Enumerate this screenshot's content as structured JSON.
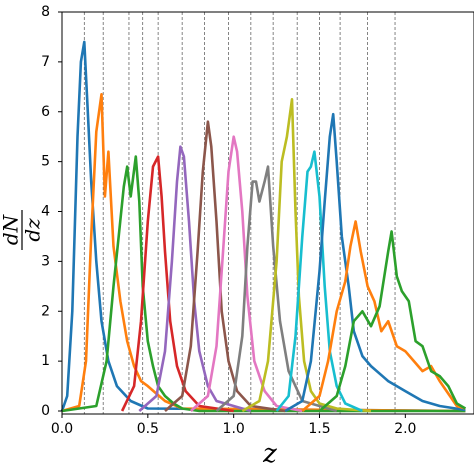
{
  "chart_data": {
    "type": "line",
    "xlabel": "z",
    "ylabel_numerator": "dN",
    "ylabel_denominator": "dz",
    "xlim": [
      0,
      2.4
    ],
    "ylim": [
      -0.06,
      8
    ],
    "xticks": [
      {
        "value": 0,
        "label": "0.0"
      },
      {
        "value": 0.5,
        "label": "0.5"
      },
      {
        "value": 1,
        "label": "1.0"
      },
      {
        "value": 1.5,
        "label": "1.5"
      },
      {
        "value": 2,
        "label": "2.0"
      }
    ],
    "yticks": [
      0,
      1,
      2,
      3,
      4,
      5,
      6,
      7,
      8
    ],
    "vlines": [
      0.13,
      0.24,
      0.39,
      0.47,
      0.56,
      0.7,
      0.83,
      0.97,
      1.1,
      1.23,
      1.37,
      1.5,
      1.62,
      1.78,
      1.94
    ],
    "series": [
      {
        "color": "#1f77b4",
        "x": [
          0,
          0.03,
          0.06,
          0.09,
          0.11,
          0.13,
          0.15,
          0.17,
          0.2,
          0.23,
          0.27,
          0.32,
          0.4,
          0.5,
          2.35
        ],
        "values": [
          0,
          0.3,
          2,
          5.5,
          7,
          7.4,
          6,
          4.6,
          3,
          1.8,
          1,
          0.5,
          0.2,
          0.05,
          0
        ]
      },
      {
        "color": "#ff7f0e",
        "x": [
          0,
          0.1,
          0.14,
          0.17,
          0.2,
          0.23,
          0.25,
          0.27,
          0.3,
          0.34,
          0.38,
          0.42,
          0.46,
          0.5,
          0.55,
          0.6,
          0.7,
          2.35
        ],
        "values": [
          0,
          0.1,
          1,
          3.5,
          5.6,
          6.35,
          4.3,
          5.2,
          3.3,
          2.2,
          1.4,
          0.9,
          0.6,
          0.5,
          0.35,
          0.2,
          0.05,
          0
        ]
      },
      {
        "color": "#2ca02c",
        "x": [
          0,
          0.2,
          0.26,
          0.3,
          0.33,
          0.36,
          0.38,
          0.4,
          0.43,
          0.45,
          0.47,
          0.5,
          0.53,
          0.56,
          0.6,
          0.65,
          0.7,
          0.8,
          2.35
        ],
        "values": [
          0,
          0.1,
          1,
          2.5,
          3.5,
          4.5,
          4.9,
          4.3,
          5.1,
          4.2,
          2.5,
          1.4,
          0.9,
          0.5,
          0.3,
          0.15,
          0.05,
          0,
          0
        ]
      },
      {
        "color": "#d62728",
        "x": [
          0.35,
          0.42,
          0.46,
          0.5,
          0.53,
          0.56,
          0.58,
          0.6,
          0.63,
          0.67,
          0.72,
          0.8,
          1.0
        ],
        "values": [
          0,
          0.5,
          1.8,
          3.8,
          4.9,
          5.1,
          4.3,
          3.2,
          1.8,
          0.9,
          0.4,
          0.1,
          0
        ]
      },
      {
        "color": "#9467bd",
        "x": [
          0.45,
          0.55,
          0.6,
          0.64,
          0.67,
          0.69,
          0.71,
          0.74,
          0.77,
          0.8,
          0.85,
          0.9,
          1.1
        ],
        "values": [
          0,
          0.3,
          1.2,
          3,
          4.6,
          5.3,
          5.1,
          3.8,
          2.2,
          1.2,
          0.5,
          0.2,
          0
        ]
      },
      {
        "color": "#8c564b",
        "x": [
          0.6,
          0.7,
          0.75,
          0.79,
          0.82,
          0.85,
          0.87,
          0.9,
          0.93,
          0.97,
          1.02,
          1.1,
          1.3
        ],
        "values": [
          0,
          0.3,
          1.3,
          3.2,
          4.8,
          5.8,
          5.3,
          3.8,
          2,
          1,
          0.4,
          0.1,
          0
        ]
      },
      {
        "color": "#e377c2",
        "x": [
          0.75,
          0.85,
          0.9,
          0.94,
          0.97,
          1.0,
          1.02,
          1.05,
          1.08,
          1.12,
          1.18,
          1.25,
          1.4
        ],
        "values": [
          0,
          0.3,
          1.3,
          3.3,
          4.8,
          5.5,
          5.2,
          4,
          2.3,
          1,
          0.4,
          0.1,
          0
        ]
      },
      {
        "color": "#7f7f7f",
        "x": [
          0.9,
          1.0,
          1.05,
          1.08,
          1.11,
          1.13,
          1.15,
          1.18,
          1.2,
          1.23,
          1.27,
          1.32,
          1.4,
          1.6
        ],
        "values": [
          0,
          0.3,
          1.5,
          3.3,
          4.6,
          4.6,
          4.2,
          4.6,
          4.9,
          3.3,
          1.8,
          0.8,
          0.2,
          0
        ]
      },
      {
        "color": "#bcbd22",
        "x": [
          1.05,
          1.15,
          1.2,
          1.25,
          1.28,
          1.31,
          1.34,
          1.36,
          1.38,
          1.41,
          1.45,
          1.5,
          1.6,
          1.8
        ],
        "values": [
          0,
          0.2,
          1,
          3,
          5,
          5.5,
          6.25,
          4,
          2.3,
          1,
          0.4,
          0.15,
          0.05,
          0
        ]
      },
      {
        "color": "#17becf",
        "x": [
          1.25,
          1.32,
          1.36,
          1.4,
          1.43,
          1.45,
          1.47,
          1.5,
          1.53,
          1.56,
          1.6,
          1.65,
          1.75
        ],
        "values": [
          0,
          0.3,
          1.5,
          3.5,
          4.8,
          4.9,
          5.2,
          4.3,
          2.5,
          1.2,
          0.5,
          0.15,
          0
        ]
      },
      {
        "color": "#1f77b4",
        "x": [
          1.3,
          1.4,
          1.45,
          1.5,
          1.53,
          1.56,
          1.58,
          1.6,
          1.63,
          1.67,
          1.7,
          1.75,
          1.8,
          1.9,
          2.0,
          2.1,
          2.2,
          2.35
        ],
        "values": [
          0,
          0.2,
          1,
          2.8,
          4.2,
          5.5,
          5.95,
          5,
          3.5,
          2.5,
          1.6,
          1.1,
          0.9,
          0.6,
          0.4,
          0.2,
          0.1,
          0.02
        ]
      },
      {
        "color": "#ff7f0e",
        "x": [
          1.4,
          1.5,
          1.55,
          1.6,
          1.65,
          1.68,
          1.71,
          1.74,
          1.78,
          1.82,
          1.86,
          1.9,
          1.95,
          2.0,
          2.05,
          2.1,
          2.15,
          2.2,
          2.3,
          2.35
        ],
        "values": [
          0,
          0.3,
          1,
          2,
          2.6,
          3.3,
          3.8,
          3.2,
          2.5,
          2.2,
          1.6,
          1.8,
          1.3,
          1.2,
          1,
          0.8,
          0.9,
          0.6,
          0.1,
          0.05
        ]
      },
      {
        "color": "#2ca02c",
        "x": [
          1.5,
          1.6,
          1.65,
          1.7,
          1.75,
          1.8,
          1.85,
          1.9,
          1.92,
          1.95,
          1.98,
          2.02,
          2.06,
          2.1,
          2.15,
          2.2,
          2.25,
          2.3,
          2.35
        ],
        "values": [
          0,
          0.3,
          0.9,
          1.8,
          2,
          1.7,
          2.1,
          3.2,
          3.6,
          2.7,
          2.4,
          2.2,
          1.4,
          1.3,
          0.8,
          0.7,
          0.5,
          0.15,
          0.05
        ]
      }
    ]
  }
}
